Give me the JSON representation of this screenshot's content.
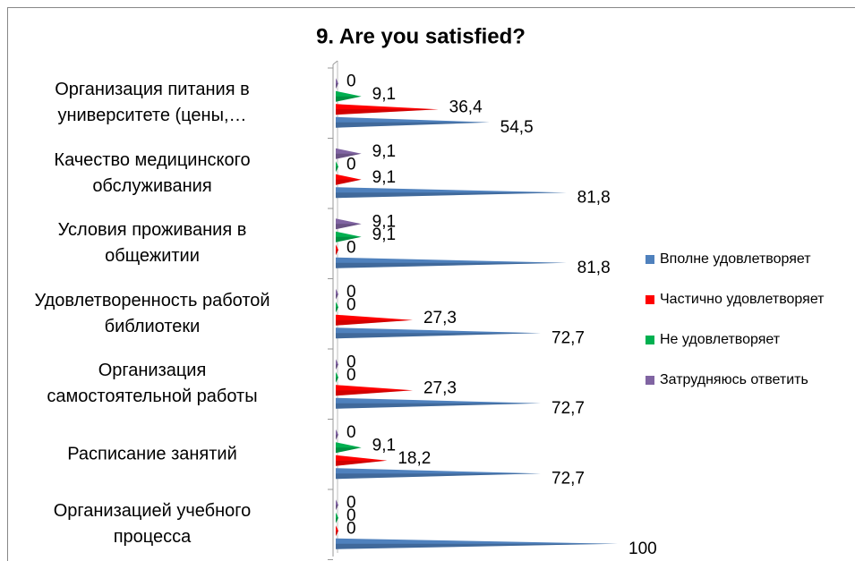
{
  "chart_data": {
    "type": "cone-bar",
    "title": "9. Are you satisfied?",
    "categories": [
      "Организация питания в\nуниверситете (цены,…",
      "Качество медицинского\nобслуживания",
      "Условия проживания в\nобщежитии",
      "Удовлетворенность работой\nбиблиотеки",
      "Организация\nсамостоятельной работы",
      "Расписание занятий",
      "Организацией учебного\nпроцесса"
    ],
    "series": [
      {
        "name": "Затрудняюсь ответить",
        "color": "#8064a2",
        "values": [
          0,
          9.1,
          9.1,
          0,
          0,
          0,
          0
        ],
        "value_labels": [
          "0",
          "9,1",
          "9,1",
          "0",
          "0",
          "0",
          "0"
        ]
      },
      {
        "name": "Не удовлетворяет",
        "color": "#00b050",
        "values": [
          9.1,
          0,
          9.1,
          0,
          0,
          9.1,
          0
        ],
        "value_labels": [
          "9,1",
          "0",
          "9,1",
          "0",
          "0",
          "9,1",
          "0"
        ]
      },
      {
        "name": "Частично удовлетворяет",
        "color": "#ff0000",
        "values": [
          36.4,
          9.1,
          0,
          27.3,
          27.3,
          18.2,
          0
        ],
        "value_labels": [
          "36,4",
          "9,1",
          "0",
          "27,3",
          "27,3",
          "18,2",
          "0"
        ]
      },
      {
        "name": "Вполне удовлетворяет",
        "color": "#4f81bd",
        "values": [
          54.5,
          81.8,
          81.8,
          72.7,
          72.7,
          72.7,
          100
        ],
        "value_labels": [
          "54,5",
          "81,8",
          "81,8",
          "72,7",
          "72,7",
          "72,7",
          "100"
        ]
      }
    ],
    "xlim": [
      0,
      100
    ],
    "legend": "right"
  }
}
